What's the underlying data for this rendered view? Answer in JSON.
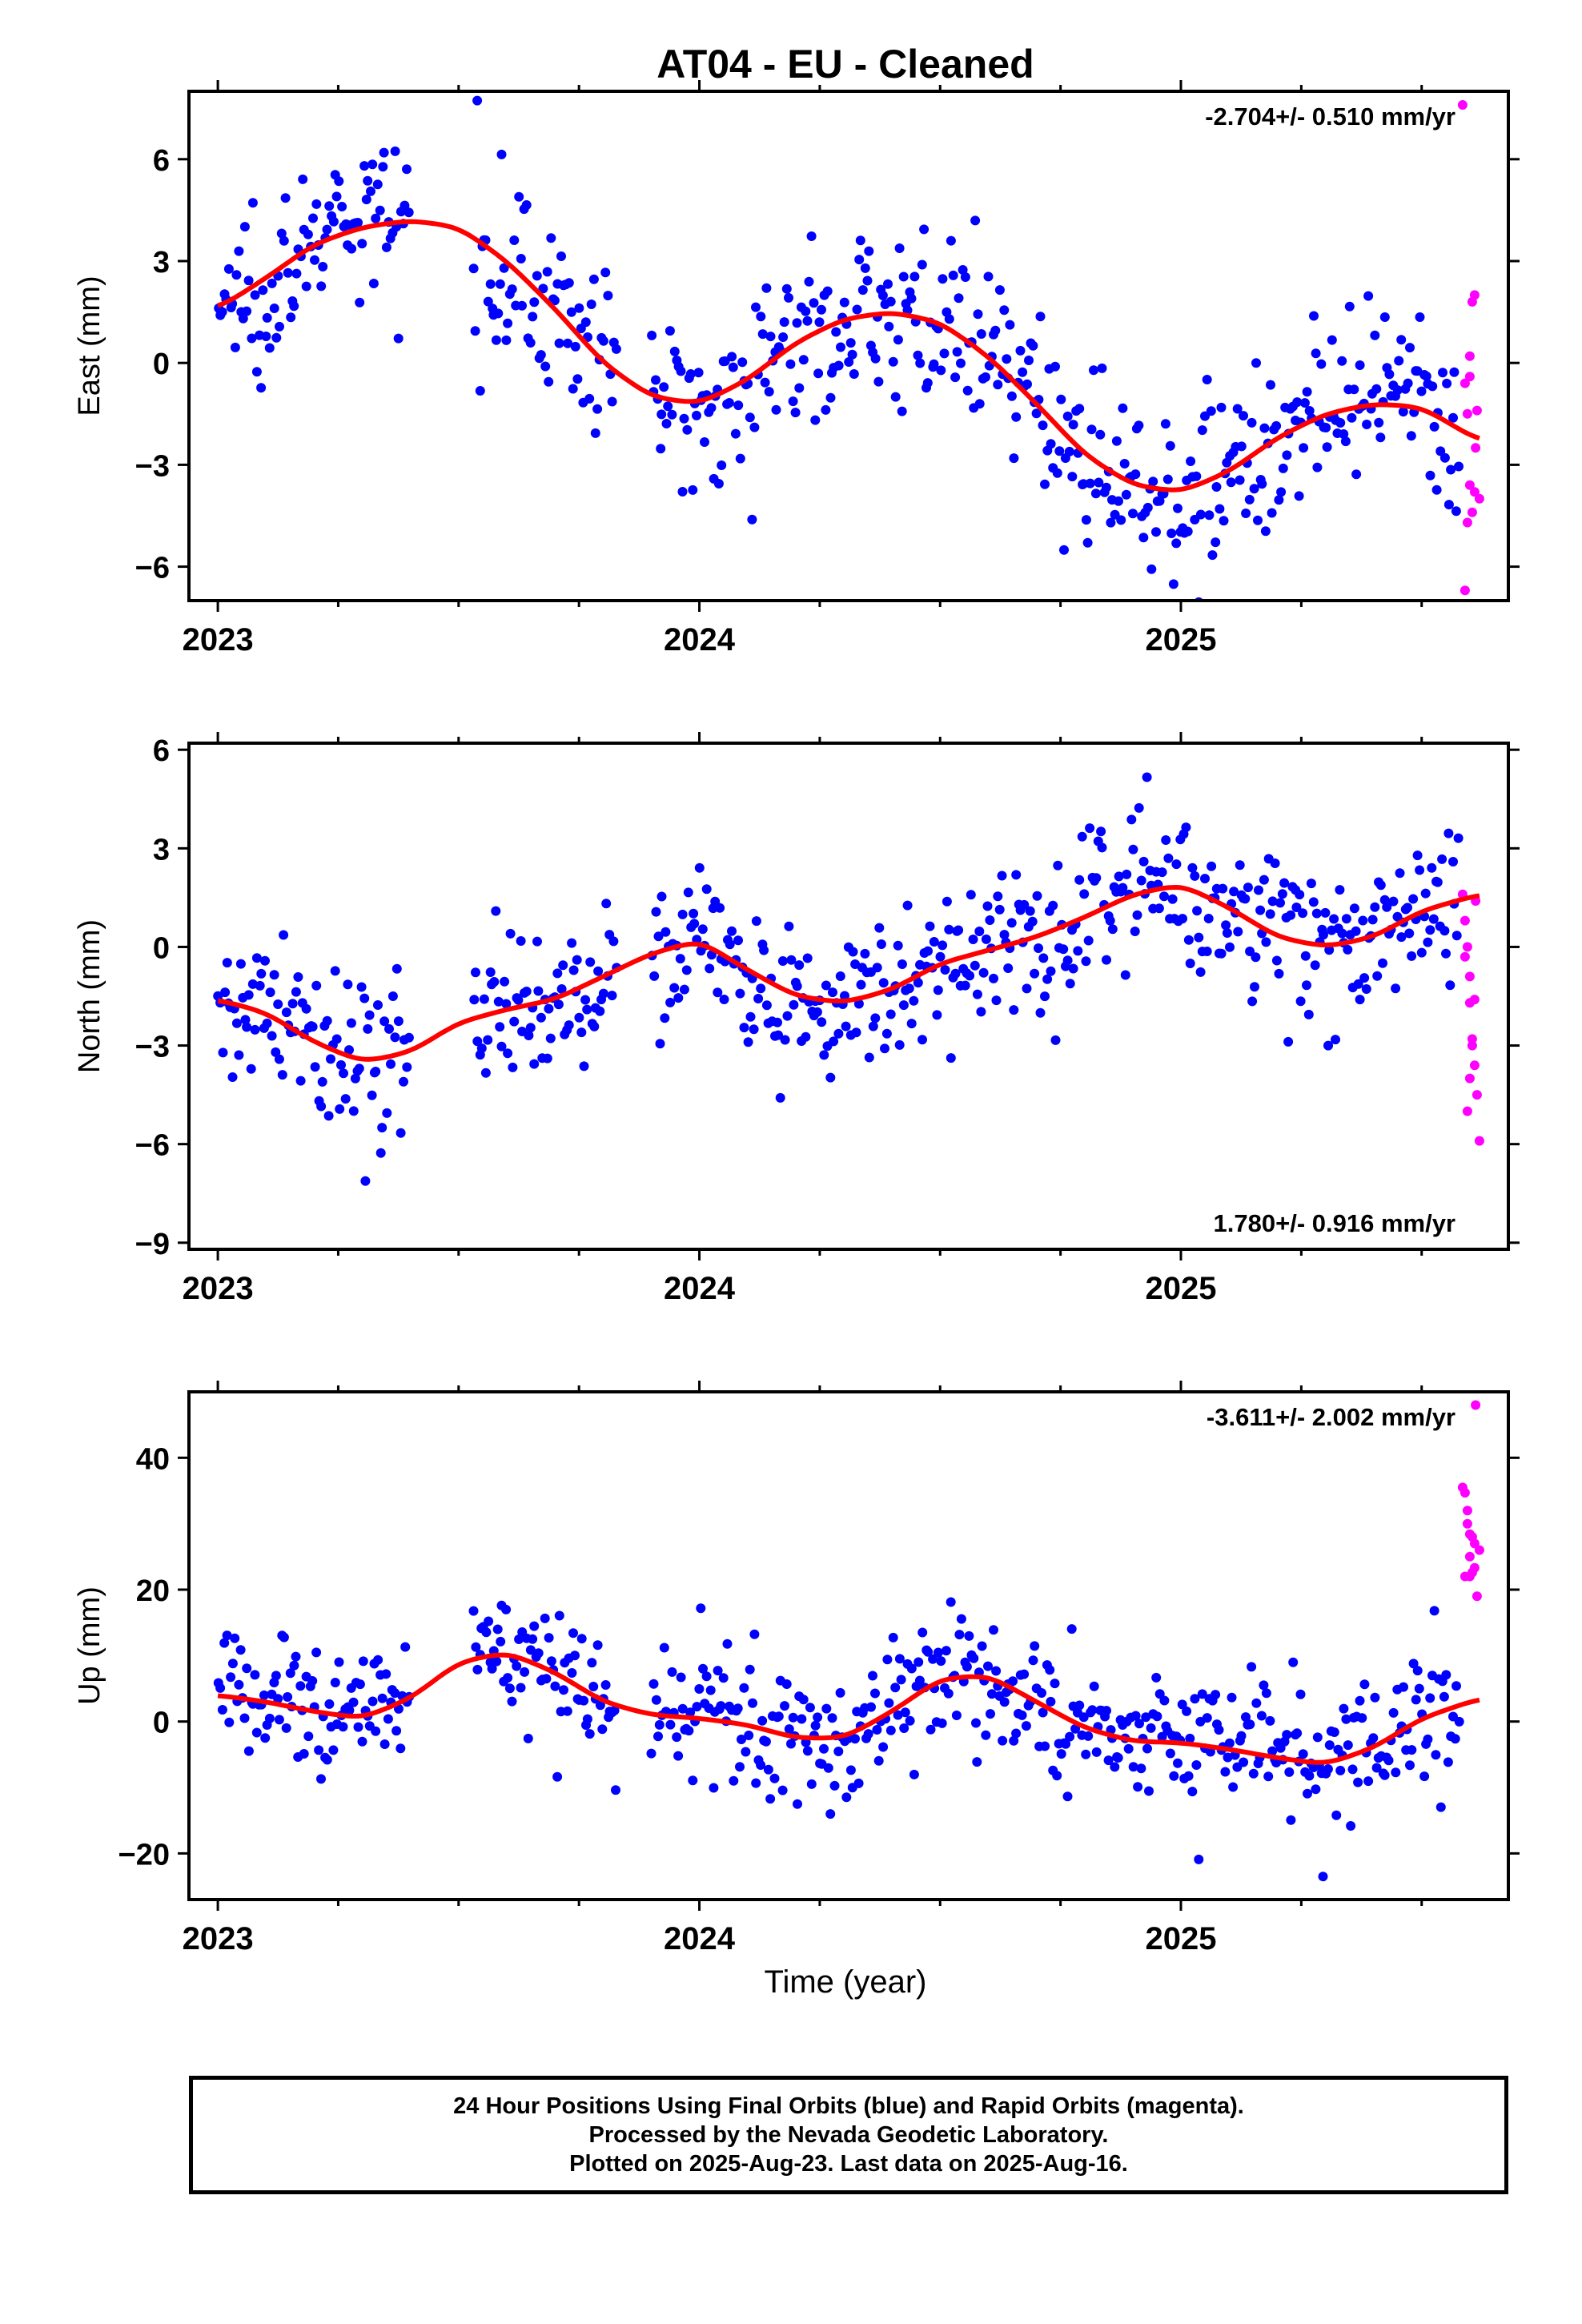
{
  "title": "AT04  - EU - Cleaned",
  "xlabel": "Time (year)",
  "footer": {
    "line1": "24 Hour Positions Using Final Orbits (blue) and Rapid Orbits (magenta).",
    "line2": "Processed by the Nevada Geodetic Laboratory.",
    "line3": "Plotted on 2025-Aug-23. Last data on 2025-Aug-16."
  },
  "colors": {
    "final": "#0000ff",
    "rapid": "#ff00ff",
    "model": "#ff0000",
    "axes": "#000000"
  },
  "chart_data": [
    {
      "type": "scatter",
      "panel": "east",
      "ylabel": "East (mm)",
      "xlim": [
        2022.94,
        2025.68
      ],
      "ylim": [
        -7,
        8
      ],
      "xticks": [
        2023,
        2024,
        2025
      ],
      "yticks": [
        -6,
        -3,
        0,
        3,
        6
      ],
      "rate_label": "-2.704+/- 0.510 mm/yr",
      "rate_position": "top-right",
      "model": {
        "x": [
          2023.0,
          2023.1,
          2023.2,
          2023.3,
          2023.4,
          2023.5,
          2023.6,
          2023.7,
          2023.8,
          2023.9,
          2024.0,
          2024.1,
          2024.2,
          2024.3,
          2024.4,
          2024.5,
          2024.6,
          2024.7,
          2024.8,
          2024.9,
          2025.0,
          2025.1,
          2025.2,
          2025.3,
          2025.4,
          2025.5,
          2025.62
        ],
        "y": [
          1.6,
          2.5,
          3.5,
          4.0,
          4.2,
          4.0,
          3.0,
          1.6,
          0.0,
          -1.0,
          -1.2,
          -0.5,
          0.6,
          1.3,
          1.5,
          1.2,
          0.2,
          -1.2,
          -2.7,
          -3.6,
          -3.8,
          -3.2,
          -2.2,
          -1.5,
          -1.2,
          -1.3,
          -2.3
        ]
      },
      "final_points": {
        "segments": [
          [
            2023.0,
            2023.4
          ],
          [
            2023.53,
            2023.83
          ],
          [
            2023.9,
            2025.58
          ]
        ],
        "count": 560,
        "scatter_sd": 1.25
      },
      "rapid_points": {
        "x": [
          2025.585,
          2025.59,
          2025.595,
          2025.6,
          2025.605,
          2025.61,
          2025.615,
          2025.62,
          2025.6,
          2025.61,
          2025.595,
          2025.605,
          2025.612,
          2025.59,
          2025.6
        ],
        "y": [
          7.6,
          -0.6,
          -1.5,
          0.2,
          1.8,
          2.0,
          -1.4,
          -4.0,
          -3.6,
          -3.8,
          -4.7,
          -4.4,
          -2.5,
          -6.7,
          -0.4
        ]
      }
    },
    {
      "type": "scatter",
      "panel": "north",
      "ylabel": "North (mm)",
      "xlim": [
        2022.94,
        2025.68
      ],
      "ylim": [
        -9.2,
        6.2
      ],
      "xticks": [
        2023,
        2024,
        2025
      ],
      "yticks": [
        -9,
        -6,
        -3,
        0,
        3,
        6
      ],
      "rate_label": "1.780+/- 0.916 mm/yr",
      "rate_position": "bottom-right",
      "model": {
        "x": [
          2023.0,
          2023.1,
          2023.2,
          2023.3,
          2023.4,
          2023.5,
          2023.6,
          2023.7,
          2023.8,
          2023.9,
          2024.0,
          2024.1,
          2024.2,
          2024.3,
          2024.4,
          2024.5,
          2024.6,
          2024.7,
          2024.8,
          2024.9,
          2025.0,
          2025.1,
          2025.2,
          2025.3,
          2025.4,
          2025.5,
          2025.62
        ],
        "y": [
          -1.6,
          -2.0,
          -2.9,
          -3.5,
          -3.2,
          -2.3,
          -1.9,
          -1.6,
          -0.9,
          -0.2,
          0.2,
          -0.7,
          -1.5,
          -1.7,
          -1.3,
          -0.5,
          -0.1,
          0.3,
          0.9,
          1.6,
          1.9,
          1.2,
          0.3,
          0.0,
          0.3,
          1.1,
          1.6
        ]
      },
      "final_points": {
        "segments": [
          [
            2023.0,
            2023.4
          ],
          [
            2023.53,
            2023.83
          ],
          [
            2023.9,
            2025.58
          ]
        ],
        "count": 560,
        "scatter_sd": 1.2
      },
      "rapid_points": {
        "x": [
          2025.585,
          2025.59,
          2025.595,
          2025.6,
          2025.605,
          2025.61,
          2025.615,
          2025.62,
          2025.6,
          2025.61,
          2025.595,
          2025.605,
          2025.612,
          2025.59,
          2025.6
        ],
        "y": [
          1.6,
          -0.3,
          0.0,
          -1.7,
          -2.8,
          -3.6,
          -4.5,
          -5.9,
          -4.0,
          -1.6,
          -5.0,
          -3.0,
          1.4,
          0.8,
          -0.9
        ]
      }
    },
    {
      "type": "scatter",
      "panel": "up",
      "ylabel": "Up (mm)",
      "xlim": [
        2022.94,
        2025.68
      ],
      "ylim": [
        -27,
        50
      ],
      "xticks": [
        2023,
        2024,
        2025
      ],
      "yticks": [
        -20,
        0,
        20,
        40
      ],
      "rate_label": "-3.611+/- 2.002 mm/yr",
      "rate_position": "top-right",
      "model": {
        "x": [
          2023.0,
          2023.1,
          2023.2,
          2023.3,
          2023.4,
          2023.5,
          2023.6,
          2023.7,
          2023.8,
          2023.9,
          2024.0,
          2024.1,
          2024.2,
          2024.3,
          2024.4,
          2024.5,
          2024.6,
          2024.7,
          2024.8,
          2024.9,
          2025.0,
          2025.1,
          2025.2,
          2025.3,
          2025.4,
          2025.5,
          2025.62
        ],
        "y": [
          4.0,
          3.0,
          1.5,
          0.5,
          3.5,
          9.0,
          10.5,
          7.5,
          3.0,
          1.0,
          0.5,
          -0.5,
          -2.5,
          -2.5,
          1.5,
          6.5,
          7.0,
          3.0,
          -1.0,
          -3.0,
          -3.2,
          -4.2,
          -5.5,
          -6.5,
          -4.0,
          0.5,
          3.5
        ]
      },
      "final_points": {
        "segments": [
          [
            2023.0,
            2023.4
          ],
          [
            2023.53,
            2023.83
          ],
          [
            2023.9,
            2025.58
          ]
        ],
        "count": 560,
        "scatter_sd": 5.0
      },
      "rapid_points": {
        "x": [
          2025.585,
          2025.59,
          2025.595,
          2025.6,
          2025.605,
          2025.61,
          2025.615,
          2025.62,
          2025.6,
          2025.61,
          2025.595,
          2025.605,
          2025.612,
          2025.59,
          2025.6
        ],
        "y": [
          35.5,
          34.7,
          30.0,
          28.4,
          22.6,
          27.0,
          19.0,
          26.0,
          22.0,
          23.3,
          32.0,
          28.0,
          48.0,
          22.0,
          25.0
        ]
      }
    }
  ]
}
